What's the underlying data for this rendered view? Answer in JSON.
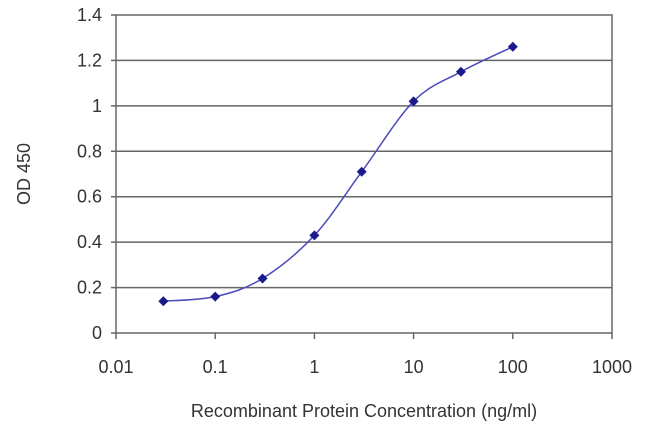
{
  "chart_data": {
    "type": "line",
    "title": "",
    "xlabel": "Recombinant Protein Concentration (ng/ml)",
    "ylabel": "OD 450",
    "x_scale": "log",
    "xlim": [
      0.01,
      1000
    ],
    "ylim": [
      0,
      1.4
    ],
    "x_ticks": [
      0.01,
      0.1,
      1,
      10,
      100,
      1000
    ],
    "x_tick_labels": [
      "0.01",
      "0.1",
      "1",
      "10",
      "100",
      "1000"
    ],
    "y_ticks": [
      0,
      0.2,
      0.4,
      0.6,
      0.8,
      1,
      1.2,
      1.4
    ],
    "y_tick_labels": [
      "0",
      "0.2",
      "0.4",
      "0.6",
      "0.8",
      "1",
      "1.2",
      "1.4"
    ],
    "grid": "horizontal",
    "legend": "none",
    "series": [
      {
        "x": [
          0.03,
          0.1,
          0.3,
          1,
          3,
          10,
          30,
          100
        ],
        "y": [
          0.14,
          0.16,
          0.24,
          0.43,
          0.71,
          1.02,
          1.15,
          1.26
        ],
        "color": "#1a1a8c",
        "marker": "diamond"
      }
    ]
  }
}
